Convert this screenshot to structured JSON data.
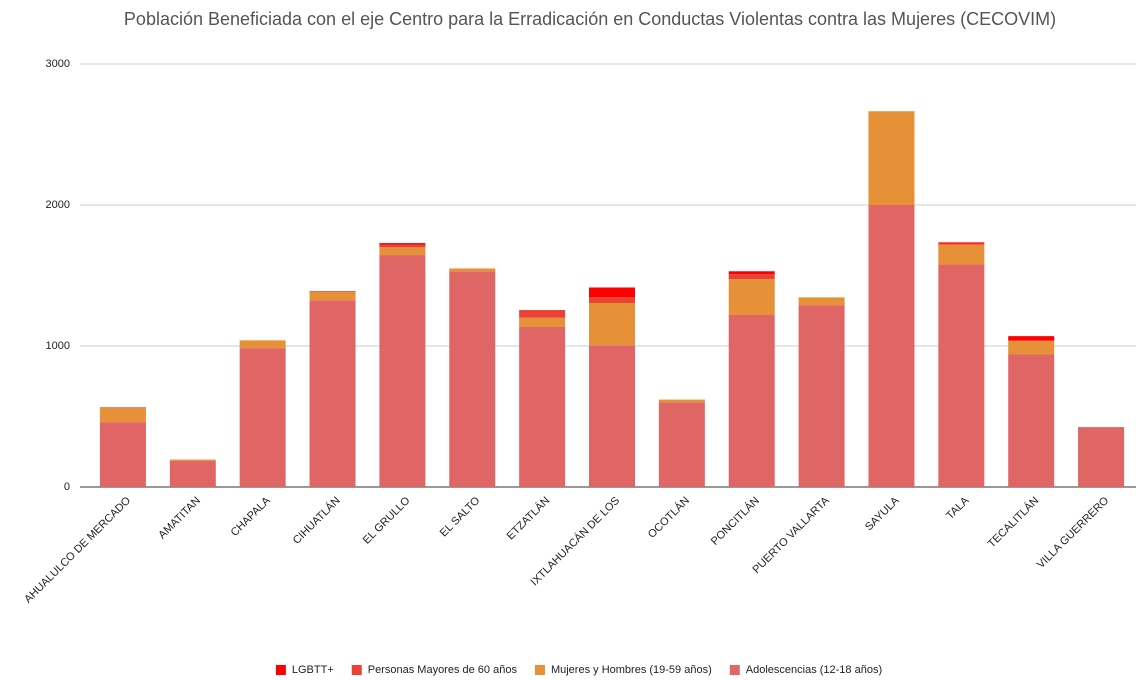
{
  "chart_data": {
    "type": "stacked_bar",
    "title": "Población Beneficiada con el eje Centro para la Erradicación en Conductas Violentas contra las Mujeres (CECOVIM)",
    "categories": [
      "AHUALULCO DE MERCADO",
      "AMATITAN",
      "CHAPALA",
      "CIHUATLÁN",
      "EL GRULLO",
      "EL SALTO",
      "ETZATLÁN",
      "IXTLAHUACÁN DE LOS",
      "OCOTLÁN",
      "PONCITLÁN",
      "PUERTO VALLARTA",
      "SAYULA",
      "TALA",
      "TECALITLÁN",
      "VILLA GUERRERO"
    ],
    "series": [
      {
        "name": "Adolescencias (12-18 años)",
        "color": "#e06666",
        "values": [
          460,
          185,
          985,
          1325,
          1645,
          1530,
          1135,
          1005,
          600,
          1220,
          1290,
          2000,
          1580,
          940,
          425
        ]
      },
      {
        "name": "Mujeres y Hombres (19-59 años)",
        "color": "#e69138",
        "values": [
          100,
          10,
          55,
          60,
          55,
          20,
          65,
          300,
          20,
          255,
          55,
          665,
          140,
          95,
          0
        ]
      },
      {
        "name": "Personas Mayores de 60 años",
        "color": "#ea4335",
        "values": [
          5,
          0,
          0,
          5,
          20,
          0,
          55,
          40,
          0,
          35,
          0,
          0,
          5,
          5,
          0
        ]
      },
      {
        "name": "LGBTT+",
        "color": "#ff0000",
        "values": [
          0,
          0,
          0,
          0,
          10,
          0,
          0,
          70,
          0,
          20,
          0,
          0,
          10,
          30,
          0
        ]
      }
    ],
    "ylim": [
      0,
      3000
    ],
    "yticks": [
      0,
      1000,
      2000,
      3000
    ],
    "grid": true,
    "legend": "bottom"
  }
}
